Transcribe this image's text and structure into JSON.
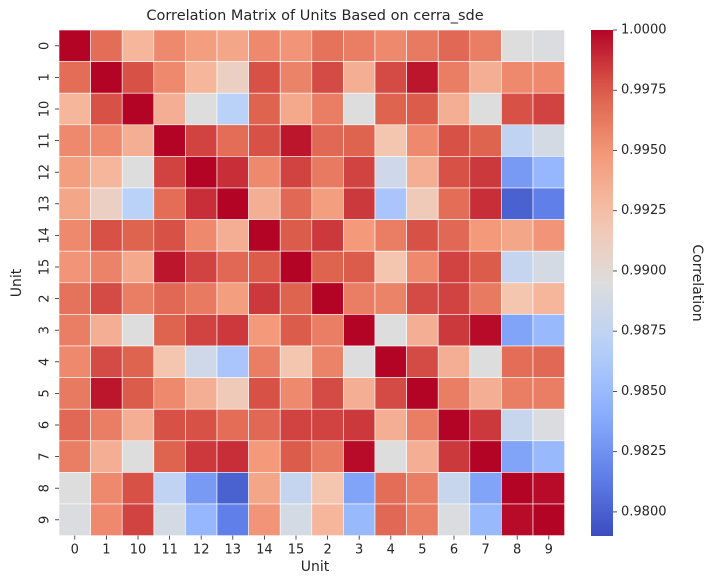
{
  "chart_data": {
    "type": "heatmap",
    "title": "Correlation Matrix of Units Based on cerra_sde",
    "xlabel": "Unit",
    "ylabel": "Unit",
    "x_categories": [
      "0",
      "1",
      "10",
      "11",
      "12",
      "13",
      "14",
      "15",
      "2",
      "3",
      "4",
      "5",
      "6",
      "7",
      "8",
      "9"
    ],
    "y_categories": [
      "0",
      "1",
      "10",
      "11",
      "12",
      "13",
      "14",
      "15",
      "2",
      "3",
      "4",
      "5",
      "6",
      "7",
      "8",
      "9"
    ],
    "values": [
      [
        1.0,
        0.9968,
        0.993,
        0.9955,
        0.9945,
        0.994,
        0.9955,
        0.995,
        0.9965,
        0.996,
        0.9955,
        0.9962,
        0.997,
        0.996,
        0.9895,
        0.9893
      ],
      [
        0.9968,
        1.0,
        0.9978,
        0.9955,
        0.993,
        0.991,
        0.9978,
        0.9958,
        0.998,
        0.9935,
        0.998,
        0.9995,
        0.996,
        0.9935,
        0.9955,
        0.9955
      ],
      [
        0.993,
        0.9978,
        1.0,
        0.9935,
        0.9895,
        0.987,
        0.9972,
        0.9938,
        0.996,
        0.9895,
        0.9972,
        0.9975,
        0.9935,
        0.9895,
        0.9978,
        0.9982
      ],
      [
        0.9955,
        0.9955,
        0.9935,
        1.0,
        0.9982,
        0.9968,
        0.9978,
        0.9995,
        0.997,
        0.9972,
        0.992,
        0.9955,
        0.9978,
        0.9972,
        0.9875,
        0.9888
      ],
      [
        0.9945,
        0.993,
        0.9895,
        0.9982,
        1.0,
        0.9988,
        0.9955,
        0.9982,
        0.9962,
        0.9982,
        0.9885,
        0.9935,
        0.9978,
        0.9985,
        0.983,
        0.9848
      ],
      [
        0.994,
        0.991,
        0.987,
        0.9968,
        0.9988,
        1.0,
        0.9935,
        0.997,
        0.9945,
        0.9985,
        0.986,
        0.9915,
        0.9968,
        0.9988,
        0.98,
        0.9815
      ],
      [
        0.9955,
        0.9978,
        0.9972,
        0.9978,
        0.9955,
        0.9935,
        1.0,
        0.9975,
        0.9985,
        0.9948,
        0.996,
        0.9978,
        0.997,
        0.9948,
        0.994,
        0.995
      ],
      [
        0.995,
        0.9958,
        0.9938,
        0.9995,
        0.9982,
        0.997,
        0.9975,
        1.0,
        0.9972,
        0.9975,
        0.992,
        0.9955,
        0.9982,
        0.9975,
        0.9878,
        0.9888
      ],
      [
        0.9965,
        0.998,
        0.996,
        0.997,
        0.9962,
        0.9945,
        0.9985,
        0.9972,
        1.0,
        0.996,
        0.9958,
        0.998,
        0.9982,
        0.9962,
        0.992,
        0.993
      ],
      [
        0.996,
        0.9935,
        0.9895,
        0.9972,
        0.9982,
        0.9985,
        0.9948,
        0.9975,
        0.996,
        1.0,
        0.9895,
        0.9935,
        0.9985,
        0.9998,
        0.9835,
        0.985
      ],
      [
        0.9955,
        0.998,
        0.9972,
        0.992,
        0.9885,
        0.986,
        0.996,
        0.992,
        0.9958,
        0.9895,
        1.0,
        0.998,
        0.9935,
        0.9895,
        0.9968,
        0.997
      ],
      [
        0.9962,
        0.9995,
        0.9975,
        0.9955,
        0.9935,
        0.9915,
        0.9978,
        0.9955,
        0.998,
        0.9935,
        0.998,
        1.0,
        0.996,
        0.9935,
        0.996,
        0.996
      ],
      [
        0.997,
        0.996,
        0.9935,
        0.9978,
        0.9978,
        0.9968,
        0.997,
        0.9982,
        0.9982,
        0.9985,
        0.9935,
        0.996,
        1.0,
        0.9985,
        0.988,
        0.9893
      ],
      [
        0.996,
        0.9935,
        0.9895,
        0.9972,
        0.9985,
        0.9988,
        0.9948,
        0.9975,
        0.9962,
        0.9998,
        0.9895,
        0.9935,
        0.9985,
        1.0,
        0.9835,
        0.985
      ],
      [
        0.9895,
        0.9955,
        0.9978,
        0.9875,
        0.983,
        0.98,
        0.994,
        0.9878,
        0.992,
        0.9835,
        0.9968,
        0.996,
        0.988,
        0.9835,
        1.0,
        0.9998
      ],
      [
        0.9893,
        0.9955,
        0.9982,
        0.9888,
        0.9848,
        0.9815,
        0.995,
        0.9888,
        0.993,
        0.985,
        0.997,
        0.996,
        0.9893,
        0.985,
        0.9998,
        1.0
      ]
    ],
    "colorbar": {
      "label": "Correlation",
      "range": [
        0.979,
        1.0
      ],
      "ticks": [
        "1.0000",
        "0.9975",
        "0.9950",
        "0.9925",
        "0.9900",
        "0.9875",
        "0.9850",
        "0.9825",
        "0.9800"
      ],
      "colormap": "coolwarm"
    },
    "grid": false
  }
}
